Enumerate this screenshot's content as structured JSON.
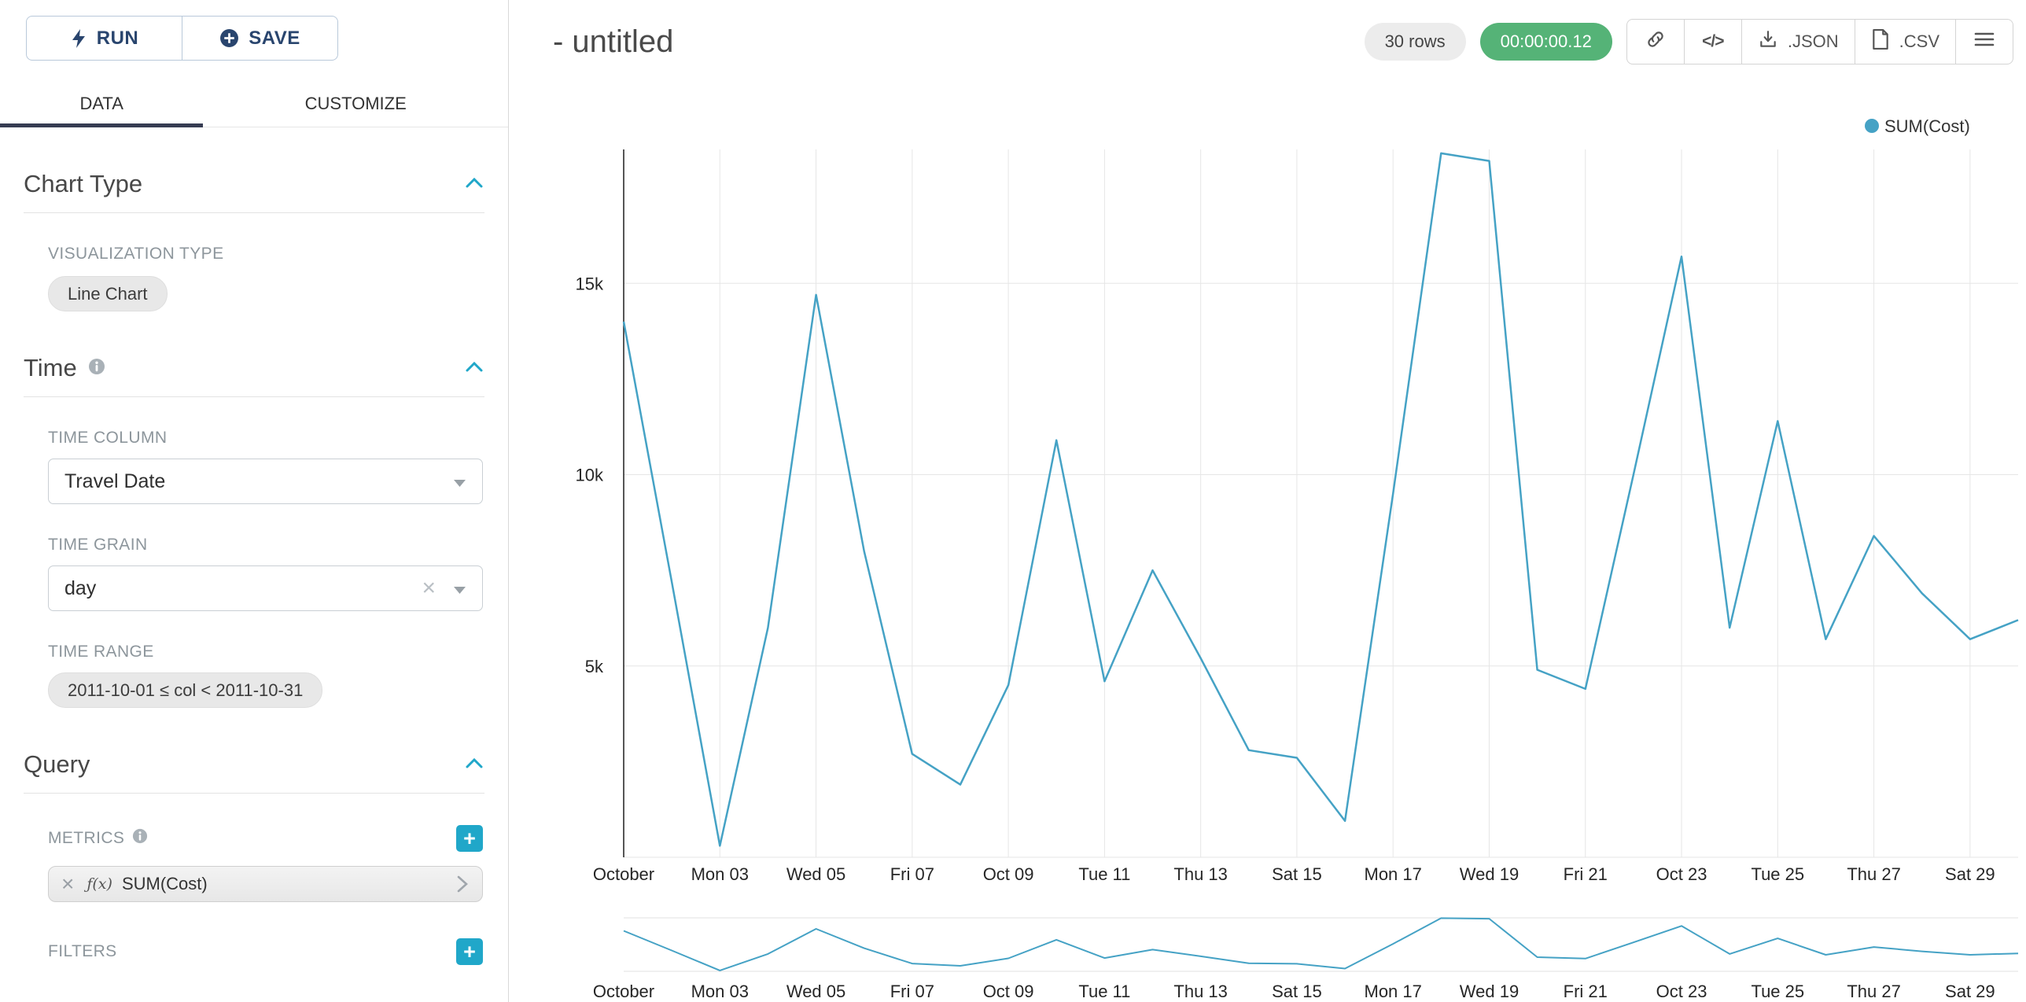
{
  "colors": {
    "accent": "#20a7c9",
    "line": "#45a2c5",
    "timer_badge_bg": "#55b377",
    "grid": "#e6e6e6",
    "axis": "#1f1f1f"
  },
  "sidebar": {
    "run_button": "RUN",
    "save_button": "SAVE",
    "tabs": [
      {
        "label": "DATA",
        "active": true
      },
      {
        "label": "CUSTOMIZE",
        "active": false
      }
    ],
    "chart_type_section": {
      "title": "Chart Type",
      "visualization_type_label": "VISUALIZATION TYPE",
      "visualization_type_value": "Line Chart"
    },
    "time_section": {
      "title": "Time",
      "time_column_label": "TIME COLUMN",
      "time_column_value": "Travel Date",
      "time_grain_label": "TIME GRAIN",
      "time_grain_value": "day",
      "time_range_label": "TIME RANGE",
      "time_range_value": "2011-10-01 ≤ col < 2011-10-31"
    },
    "query_section": {
      "title": "Query",
      "metrics_label": "METRICS",
      "metric": {
        "fx": "ƒ(x)",
        "label": "SUM(Cost)"
      },
      "filters_label": "FILTERS"
    }
  },
  "header": {
    "title": "- untitled",
    "rows_badge": "30 rows",
    "timer_badge": "00:00:00.12",
    "json_button": ".JSON",
    "csv_button": ".CSV"
  },
  "chart_data": {
    "type": "line",
    "title": "- untitled",
    "legend": [
      {
        "label": "SUM(Cost)",
        "color": "#45a2c5"
      }
    ],
    "legend_position": "top-right",
    "grid": true,
    "x": [
      "2011-10-01",
      "2011-10-02",
      "2011-10-03",
      "2011-10-04",
      "2011-10-05",
      "2011-10-06",
      "2011-10-07",
      "2011-10-08",
      "2011-10-09",
      "2011-10-10",
      "2011-10-11",
      "2011-10-12",
      "2011-10-13",
      "2011-10-14",
      "2011-10-15",
      "2011-10-16",
      "2011-10-17",
      "2011-10-18",
      "2011-10-19",
      "2011-10-20",
      "2011-10-21",
      "2011-10-22",
      "2011-10-23",
      "2011-10-24",
      "2011-10-25",
      "2011-10-26",
      "2011-10-27",
      "2011-10-28",
      "2011-10-29",
      "2011-10-30"
    ],
    "series": [
      {
        "name": "SUM(Cost)",
        "values": [
          14000,
          7200,
          300,
          6000,
          14700,
          8000,
          2700,
          1900,
          4500,
          10900,
          4600,
          7500,
          5200,
          2800,
          2600,
          950,
          9500,
          18400,
          18200,
          4900,
          4400,
          10000,
          15700,
          6000,
          11400,
          5700,
          8400,
          6900,
          5700,
          6200
        ]
      }
    ],
    "x_tick_every": 2,
    "x_tick_labels": [
      "October",
      "Mon 03",
      "Wed 05",
      "Fri 07",
      "Oct 09",
      "Tue 11",
      "Thu 13",
      "Sat 15",
      "Mon 17",
      "Wed 19",
      "Fri 21",
      "Oct 23",
      "Tue 25",
      "Thu 27",
      "Sat 29"
    ],
    "y_ticks": [
      {
        "label": "5k",
        "value": 5000
      },
      {
        "label": "10k",
        "value": 10000
      },
      {
        "label": "15k",
        "value": 15000
      }
    ],
    "ylim": [
      0,
      18500
    ]
  }
}
